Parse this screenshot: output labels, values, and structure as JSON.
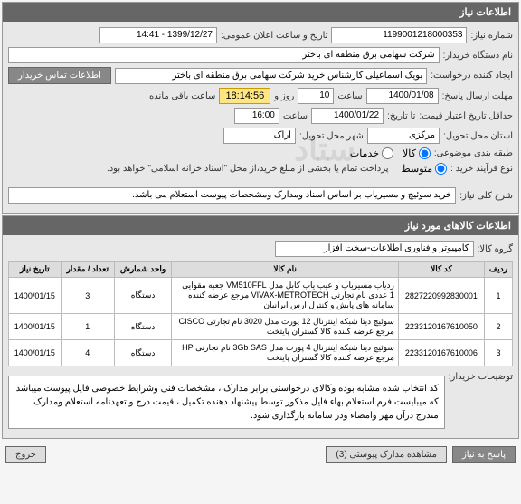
{
  "panel1": {
    "title": "اطلاعات نیاز",
    "need_number_label": "شماره نیاز:",
    "need_number": "1199001218000353",
    "announce_label": "تاریخ و ساعت اعلان عمومی:",
    "announce_value": "1399/12/27 - 14:41",
    "buyer_org_label": "نام دستگاه خریدار:",
    "buyer_org": "شرکت سهامی برق منطقه ای باختر",
    "creator_label": "ایجاد کننده درخواست:",
    "creator": "بویک اسماعیلی کارشناس خرید شرکت سهامی برق منطقه ای باختر",
    "contact_btn": "اطلاعات تماس خریدار",
    "deadline_label": "مهلت ارسال پاسخ:",
    "deadline_date": "1400/01/08",
    "saat": "ساعت",
    "deadline_hours": "10",
    "rooz_va": "روز و",
    "countdown": "18:14:56",
    "remaining": "ساعت باقی مانده",
    "validity_label": "حداقل تاریخ اعتبار قیمت:",
    "ta_tarikh": "تا تاریخ:",
    "validity_date": "1400/01/22",
    "validity_time": "16:00",
    "delivery_province_label": "استان محل تحویل:",
    "delivery_city_label": "شهر محل تحویل:",
    "classification_label": "طبقه بندی موضوعی:",
    "province": "مرکزی",
    "city": "اراک",
    "kala": "کالا",
    "khadamat": "خدمات",
    "process_label": "نوع فرآیند خرید :",
    "motavaset": "متوسط",
    "process_note": "پرداخت تمام یا بخشی از مبلغ خرید،از محل \"اسناد خزانه اسلامی\" خواهد بود.",
    "summary_label": "شرح کلی نیاز:",
    "summary": "خرید سوئیچ و مسیریاب بر اساس اسناد ومدارک ومشخصات پیوست استعلام می باشد."
  },
  "panel2": {
    "title": "اطلاعات کالاهای مورد نیاز",
    "group_label": "گروه کالا:",
    "group": "کامپیوتر و فناوری اطلاعات-سخت افزار",
    "cols": [
      "ردیف",
      "کد کالا",
      "نام کالا",
      "واحد شمارش",
      "تعداد / مقدار",
      "تاریخ نیاز"
    ],
    "rows": [
      [
        "1",
        "2827220992830001",
        "ردیاب مسیریاب و عیب یاب کابل مدل VM510FFL جعبه مقوایی 1 عددی نام تجارتی VIVAX-METROTECH مرجع عرضه کننده سامانه های پایش و کنترل ارس ایرانیان",
        "دستگاه",
        "3",
        "1400/01/15"
      ],
      [
        "2",
        "2233120167610050",
        "سوئیچ دیتا شبکه اینترنال 12 پورت مدل 3020 نام تجارتی CISCO مرجع عرضه کننده کالا گستران پایتخت",
        "دستگاه",
        "1",
        "1400/01/15"
      ],
      [
        "3",
        "2233120167610006",
        "سوئیچ دیتا شبکه اینترنال 4 پورت مدل 3Gb SAS نام تجارتی HP مرجع عرضه کننده کالا گستران پایتخت",
        "دستگاه",
        "4",
        "1400/01/15"
      ]
    ],
    "buyer_note_label": "توضیحات خریدار:",
    "buyer_note": "کد انتخاب شده مشابه بوده وکالای درخواستی برابر مدارک ، مشخصات فنی وشرایط خصوصی فایل پیوست میباشد که میبایست فرم استعلام بهاء فایل مذکور توسط پیشنهاد دهنده تکمیل ، قیمت درج و تعهدنامه استعلام ومدارک مندرج درآن مهر وامضاء ودر سامانه بارگذاری شود."
  },
  "footer": {
    "back": "پاسخ به نیاز",
    "view_attach": "مشاهده مدارک پیوستی (3)",
    "exit": "خروج"
  },
  "watermark": "ستاد"
}
